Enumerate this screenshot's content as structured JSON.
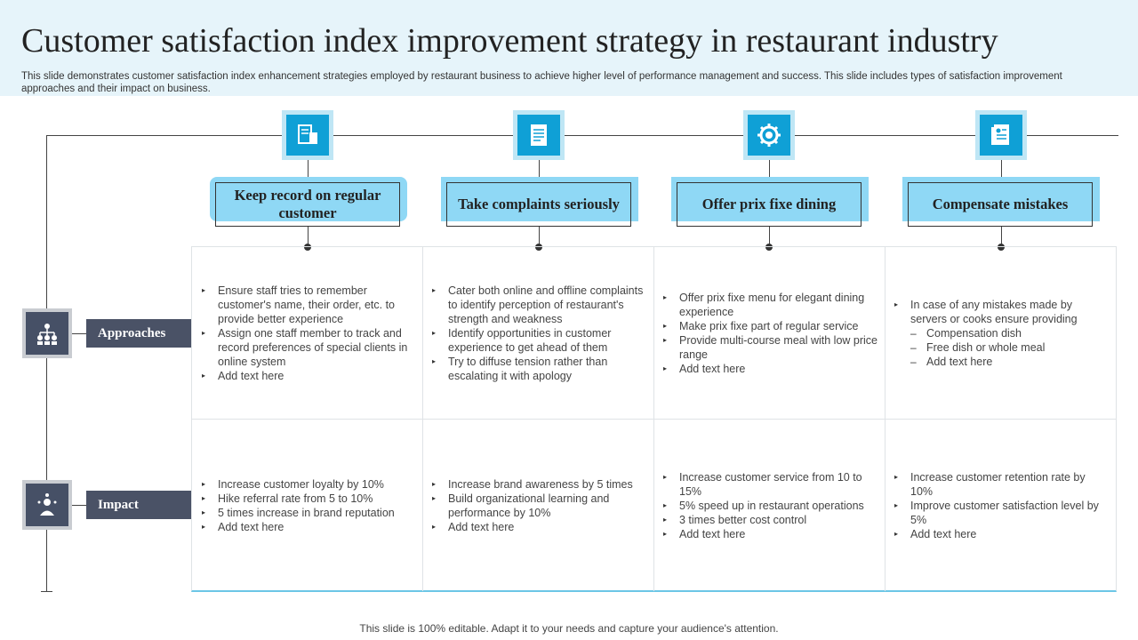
{
  "header": {
    "title": "Customer satisfaction index improvement strategy in restaurant industry",
    "subtitle": "This slide demonstrates customer satisfaction index enhancement strategies employed by restaurant business to achieve higher level of performance management and success. This slide includes types of satisfaction improvement approaches and their impact on business."
  },
  "categories": [
    {
      "label": "Keep record on regular customer",
      "icon": "customer-record-icon"
    },
    {
      "label": "Take complaints seriously",
      "icon": "complaint-form-icon"
    },
    {
      "label": "Offer prix fixe dining",
      "icon": "gear-dining-icon"
    },
    {
      "label": "Compensate mistakes",
      "icon": "document-icon"
    }
  ],
  "rows": {
    "approaches": {
      "label": "Approaches",
      "icon": "team-network-icon"
    },
    "impact": {
      "label": "Impact",
      "icon": "person-gear-icon"
    }
  },
  "approaches": [
    {
      "items": [
        "Ensure staff tries to remember customer's name,  their order, etc. to provide  better experience",
        "Assign one staff member to track and record preferences  of special clients in online system",
        "Add text here"
      ]
    },
    {
      "items": [
        "Cater both online and offline complaints to identify perception of restaurant's strength and weakness",
        "Identify opportunities in customer experience to get ahead of them",
        "Try to diffuse tension rather than escalating it with apology"
      ]
    },
    {
      "items": [
        "Offer prix fixe menu for elegant dining experience",
        "Make prix fixe part of regular service",
        "Provide  multi-course meal with low price range",
        "Add text here"
      ]
    },
    {
      "items": [
        "In case of any mistakes made by servers  or cooks ensure providing",
        "Add text here"
      ],
      "subitems": [
        "Compensation dish",
        "Free dish or whole  meal",
        "Add text here"
      ]
    }
  ],
  "impact": [
    {
      "items": [
        "Increase customer loyalty by 10%",
        "Hike referral  rate from 5 to 10%",
        "5 times increase in brand reputation",
        "Add text here"
      ]
    },
    {
      "items": [
        "Increase brand awareness  by 5 times",
        "Build organizational  learning and performance  by 10%",
        "Add text here"
      ]
    },
    {
      "items": [
        "Increase customer service from 10 to 15%",
        "5% speed up in restaurant operations",
        "3 times better cost control",
        "Add text here"
      ]
    },
    {
      "items": [
        "Increase customer retention rate by 10%",
        "Improve  customer satisfaction level by 5%",
        "Add text here"
      ]
    }
  ],
  "footer": "This slide is 100% editable. Adapt it to your needs and capture your audience's attention.",
  "colors": {
    "accent": "#0fa0d6",
    "light_accent": "#8fd8f5",
    "dark": "#4a5266",
    "header_bg": "#e6f4fa"
  }
}
